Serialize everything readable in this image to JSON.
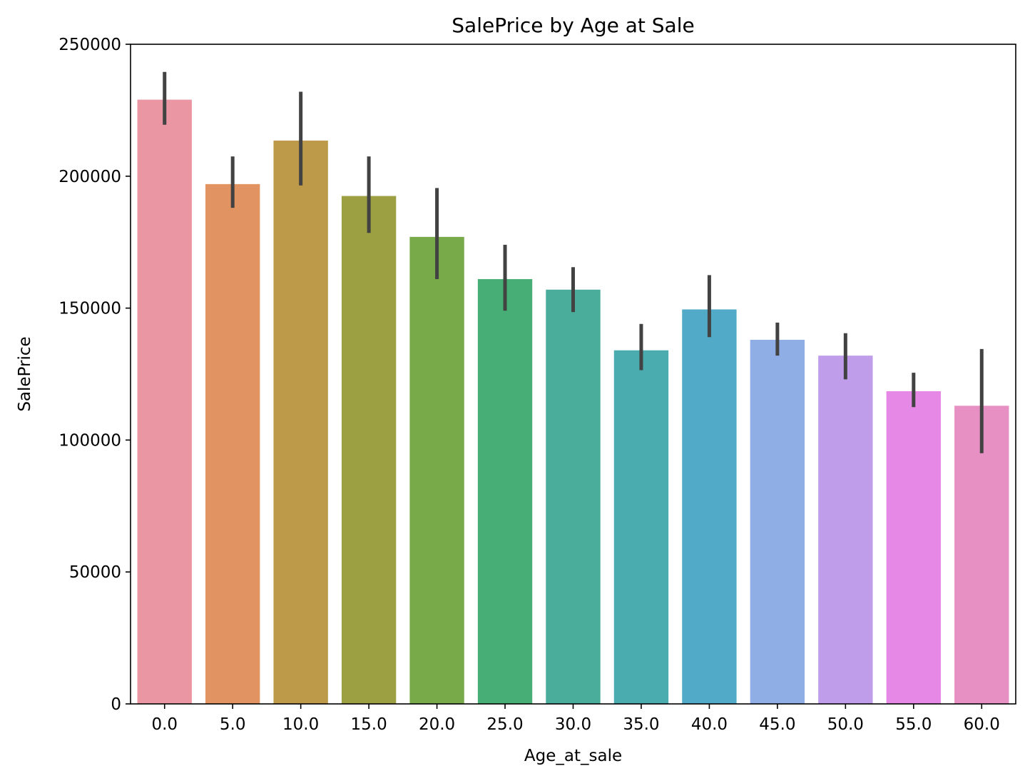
{
  "chart_data": {
    "type": "bar",
    "title": "SalePrice by Age at Sale",
    "xlabel": "Age_at_sale",
    "ylabel": "SalePrice",
    "categories": [
      "0.0",
      "5.0",
      "10.0",
      "15.0",
      "20.0",
      "25.0",
      "30.0",
      "35.0",
      "40.0",
      "45.0",
      "50.0",
      "55.0",
      "60.0"
    ],
    "values": [
      229000,
      197000,
      213500,
      192500,
      177000,
      161000,
      157000,
      134000,
      149500,
      138000,
      132000,
      118500,
      113000
    ],
    "error_bars": [
      [
        219500,
        239500
      ],
      [
        188000,
        207500
      ],
      [
        196500,
        232000
      ],
      [
        178500,
        207500
      ],
      [
        161000,
        195500
      ],
      [
        149000,
        174000
      ],
      [
        148500,
        165500
      ],
      [
        126500,
        144000
      ],
      [
        139000,
        162500
      ],
      [
        132000,
        144500
      ],
      [
        123000,
        140500
      ],
      [
        112500,
        125500
      ],
      [
        95000,
        134500
      ]
    ],
    "ylim": [
      0,
      250000
    ],
    "yticks": [
      0,
      50000,
      100000,
      150000,
      200000,
      250000
    ],
    "ytick_labels": [
      "0",
      "50000",
      "100000",
      "150000",
      "200000",
      "250000"
    ],
    "colors": [
      "#ea96a3",
      "#e29362",
      "#bc9a4a",
      "#9da042",
      "#79aa4a",
      "#47af76",
      "#4aac9a",
      "#4bacb0",
      "#51abc8",
      "#8faee6",
      "#c09deb",
      "#e688e6",
      "#e690c3"
    ],
    "error_color": "#424242",
    "grid": false,
    "legend": null
  }
}
